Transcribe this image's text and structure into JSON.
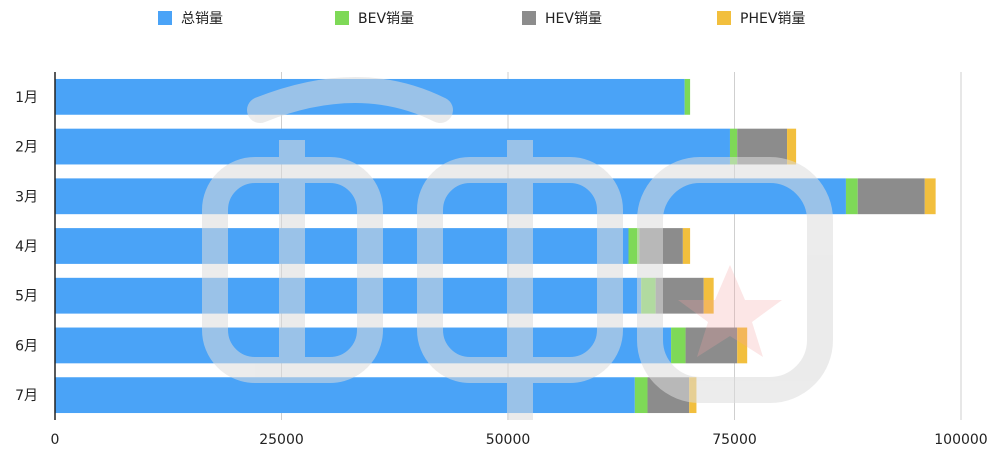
{
  "chart_data": {
    "type": "bar",
    "orientation": "horizontal",
    "stacked": true,
    "categories": [
      "1月",
      "2月",
      "3月",
      "4月",
      "5月",
      "6月",
      "7月"
    ],
    "series": [
      {
        "name": "总销量",
        "color": "#4aa3f7",
        "values": [
          69500,
          74500,
          87300,
          63300,
          64700,
          68000,
          64000
        ]
      },
      {
        "name": "BEV销量",
        "color": "#7ed957",
        "values": [
          600,
          800,
          1300,
          1200,
          1600,
          1600,
          1400
        ]
      },
      {
        "name": "HEV销量",
        "color": "#8c8c8c",
        "values": [
          0,
          5500,
          7400,
          4800,
          5300,
          5700,
          4600
        ]
      },
      {
        "name": "PHEV销量",
        "color": "#f2bf3d",
        "values": [
          0,
          1000,
          1200,
          800,
          1100,
          1100,
          800
        ]
      }
    ],
    "xlim": [
      0,
      100000
    ],
    "xticks": [
      "0",
      "25000",
      "50000",
      "75000",
      "100000"
    ],
    "grid": true,
    "legend_position": "top"
  },
  "colors": {
    "grid": "#cfcfcf",
    "axis": "#222222",
    "watermark": "#dcdcdc",
    "watermark_accent": "#f4a3a3"
  }
}
